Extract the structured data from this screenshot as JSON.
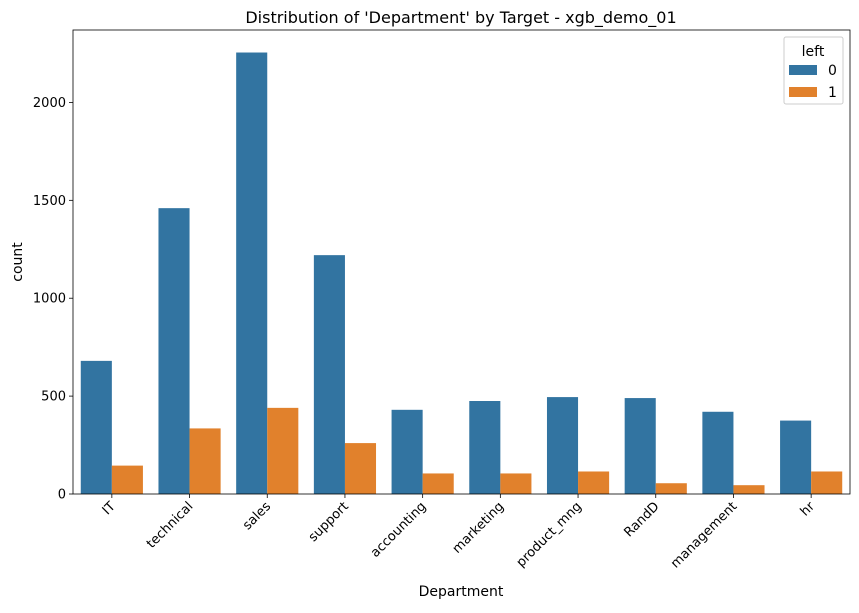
{
  "chart_data": {
    "type": "bar",
    "title": "Distribution of 'Department' by Target - xgb_demo_01",
    "xlabel": "Department",
    "ylabel": "count",
    "ylim": [
      0,
      2370
    ],
    "yticks": [
      0,
      500,
      1000,
      1500,
      2000
    ],
    "categories": [
      "IT",
      "technical",
      "sales",
      "support",
      "accounting",
      "marketing",
      "product_mng",
      "RandD",
      "management",
      "hr"
    ],
    "series": [
      {
        "name": "0",
        "color": "#3274a1",
        "values": [
          680,
          1460,
          2255,
          1220,
          430,
          475,
          495,
          490,
          420,
          375
        ]
      },
      {
        "name": "1",
        "color": "#e1812c",
        "values": [
          145,
          335,
          440,
          260,
          105,
          105,
          115,
          55,
          45,
          115
        ]
      }
    ],
    "legend": {
      "title": "left",
      "placement": "top-right"
    }
  }
}
